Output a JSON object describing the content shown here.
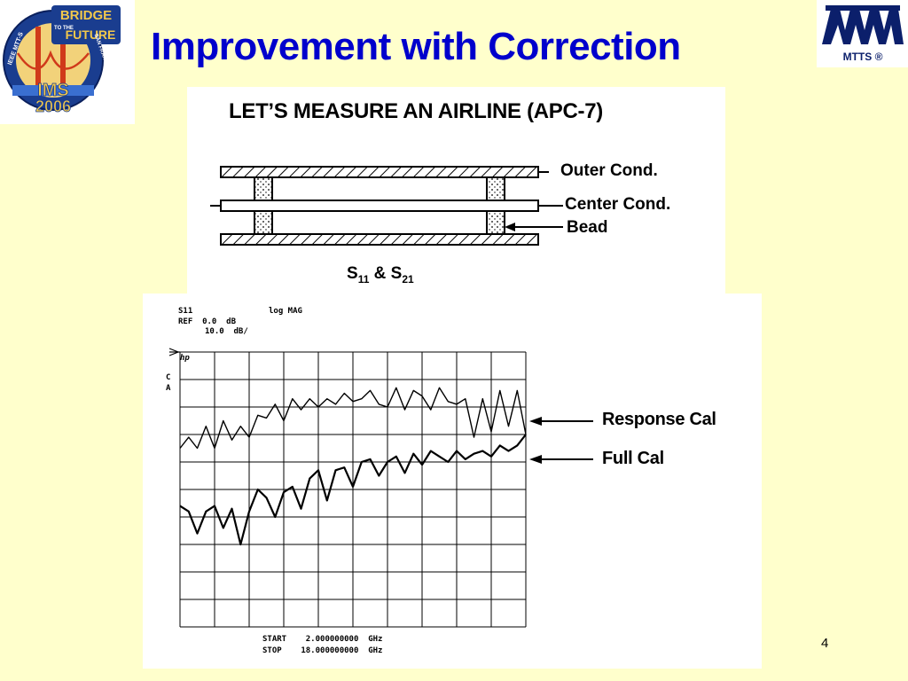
{
  "slide": {
    "title": "Improvement with Correction",
    "page_number": "4"
  },
  "logos": {
    "left": {
      "name": "ims-2006-logo",
      "text_line1": "BRIDGE",
      "text_line2": "TO THE",
      "text_line3": "FUTURE",
      "text_line4": "IMS",
      "text_line5": "2006",
      "ring_text_left": "IEEE MTT-S",
      "ring_text_right": "SAN FRANCISCO"
    },
    "right": {
      "name": "mtts-logo",
      "text": "MTTS ®"
    }
  },
  "diagram": {
    "heading": "LET’S MEASURE AN AIRLINE (APC-7)",
    "labels": {
      "outer": "Outer Cond.",
      "center": "Center Cond.",
      "bead": "Bead"
    },
    "s_param_1": "S",
    "s_param_1_sub": "11",
    "s_param_mid": " & S",
    "s_param_2_sub": "21"
  },
  "analyzer": {
    "param": "S11",
    "format": "log MAG",
    "ref_line": "REF  0.0  dB",
    "scale_line": "10.0  dB/",
    "hp_mark": "hp",
    "ca_c": "C",
    "ca_a": "A",
    "start_line": "START    2.000000000  GHz",
    "stop_line": "STOP    18.000000000  GHz"
  },
  "chart_data": {
    "type": "line",
    "title": "",
    "xlabel": "",
    "ylabel": "",
    "xlim": [
      2.0,
      18.0
    ],
    "ylim": [
      -100,
      0
    ],
    "ref_db": 0.0,
    "scale_db_per_div": 10.0,
    "grid": true,
    "x_divisions": 10,
    "y_divisions": 10,
    "series": [
      {
        "name": "Response Cal",
        "color": "#000000",
        "x": [
          2.0,
          2.4,
          2.8,
          3.2,
          3.6,
          4.0,
          4.4,
          4.8,
          5.2,
          5.6,
          6.0,
          6.4,
          6.8,
          7.2,
          7.6,
          8.0,
          8.4,
          8.8,
          9.2,
          9.6,
          10.0,
          10.4,
          10.8,
          11.2,
          11.6,
          12.0,
          12.4,
          12.8,
          13.2,
          13.6,
          14.0,
          14.4,
          14.8,
          15.2,
          15.6,
          16.0,
          16.4,
          16.8,
          17.2,
          17.6,
          18.0
        ],
        "values": [
          -35,
          -31,
          -35,
          -27,
          -35,
          -25,
          -32,
          -27,
          -31,
          -23,
          -24,
          -19,
          -25,
          -17,
          -21,
          -17,
          -20,
          -17,
          -19,
          -15,
          -18,
          -17,
          -14,
          -19,
          -20,
          -13,
          -21,
          -14,
          -16,
          -21,
          -13,
          -18,
          -19,
          -17,
          -31,
          -17,
          -29,
          -14,
          -27,
          -14,
          -30
        ]
      },
      {
        "name": "Full Cal",
        "color": "#000000",
        "x": [
          2.0,
          2.4,
          2.8,
          3.2,
          3.6,
          4.0,
          4.4,
          4.8,
          5.2,
          5.6,
          6.0,
          6.4,
          6.8,
          7.2,
          7.6,
          8.0,
          8.4,
          8.8,
          9.2,
          9.6,
          10.0,
          10.4,
          10.8,
          11.2,
          11.6,
          12.0,
          12.4,
          12.8,
          13.2,
          13.6,
          14.0,
          14.4,
          14.8,
          15.2,
          15.6,
          16.0,
          16.4,
          16.8,
          17.2,
          17.6,
          18.0
        ],
        "values": [
          -56,
          -58,
          -66,
          -58,
          -56,
          -64,
          -57,
          -70,
          -58,
          -50,
          -53,
          -60,
          -51,
          -49,
          -57,
          -46,
          -43,
          -54,
          -43,
          -42,
          -49,
          -40,
          -39,
          -45,
          -40,
          -38,
          -44,
          -37,
          -41,
          -36,
          -38,
          -40,
          -36,
          -39,
          -37,
          -36,
          -38,
          -34,
          -36,
          -34,
          -30
        ]
      }
    ]
  }
}
